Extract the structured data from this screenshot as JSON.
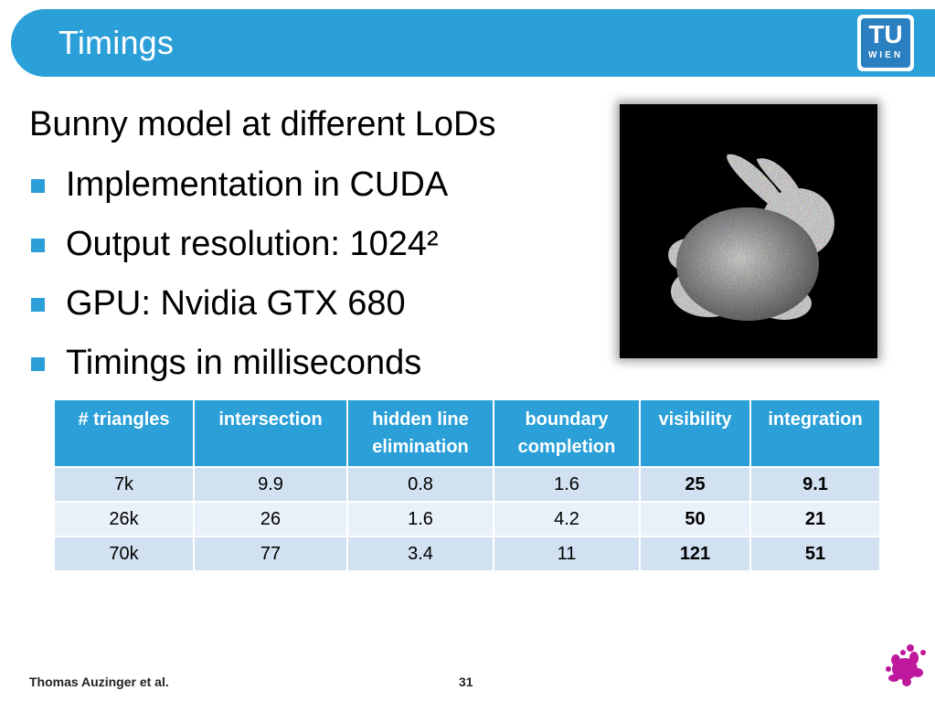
{
  "title": "Timings",
  "logo": {
    "line1": "TU",
    "line2": "WIEN"
  },
  "lead": "Bunny model at different LoDs",
  "bullets": [
    "Implementation in CUDA",
    "Output resolution: 1024²",
    "GPU: Nvidia GTX 680",
    "Timings in milliseconds"
  ],
  "table": {
    "headers": [
      "# triangles",
      "intersection",
      "hidden line elimination",
      "boundary completion",
      "visibility",
      "integration"
    ],
    "rows": [
      [
        "7k",
        "9.9",
        "0.8",
        "1.6",
        "25",
        "9.1"
      ],
      [
        "26k",
        "26",
        "1.6",
        "4.2",
        "50",
        "21"
      ],
      [
        "70k",
        "77",
        "3.4",
        "11",
        "121",
        "51"
      ]
    ]
  },
  "footer": {
    "author": "Thomas Auzinger et al.",
    "page": "31"
  },
  "colors": {
    "accent": "#2a9fd8",
    "row_dark": "#d2e1f1",
    "row_light": "#e8f0fa",
    "splat": "#c0189c"
  },
  "icons": {
    "bullet": "square-bullet-icon",
    "splat": "paint-splat-icon",
    "image": "noisy-bunny-render"
  }
}
